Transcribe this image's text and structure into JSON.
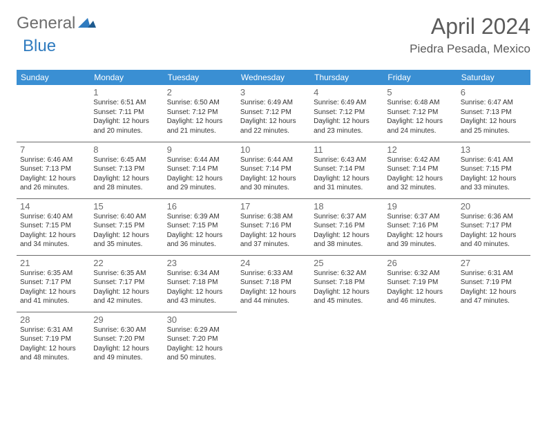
{
  "logo": {
    "text1": "General",
    "text2": "Blue"
  },
  "title": "April 2024",
  "location": "Piedra Pesada, Mexico",
  "header_bg": "#3a8fd3",
  "days_of_week": [
    "Sunday",
    "Monday",
    "Tuesday",
    "Wednesday",
    "Thursday",
    "Friday",
    "Saturday"
  ],
  "weeks": [
    [
      null,
      {
        "n": "1",
        "sr": "6:51 AM",
        "ss": "7:11 PM",
        "dh": "12",
        "dm": "20"
      },
      {
        "n": "2",
        "sr": "6:50 AM",
        "ss": "7:12 PM",
        "dh": "12",
        "dm": "21"
      },
      {
        "n": "3",
        "sr": "6:49 AM",
        "ss": "7:12 PM",
        "dh": "12",
        "dm": "22"
      },
      {
        "n": "4",
        "sr": "6:49 AM",
        "ss": "7:12 PM",
        "dh": "12",
        "dm": "23"
      },
      {
        "n": "5",
        "sr": "6:48 AM",
        "ss": "7:12 PM",
        "dh": "12",
        "dm": "24"
      },
      {
        "n": "6",
        "sr": "6:47 AM",
        "ss": "7:13 PM",
        "dh": "12",
        "dm": "25"
      }
    ],
    [
      {
        "n": "7",
        "sr": "6:46 AM",
        "ss": "7:13 PM",
        "dh": "12",
        "dm": "26"
      },
      {
        "n": "8",
        "sr": "6:45 AM",
        "ss": "7:13 PM",
        "dh": "12",
        "dm": "28"
      },
      {
        "n": "9",
        "sr": "6:44 AM",
        "ss": "7:14 PM",
        "dh": "12",
        "dm": "29"
      },
      {
        "n": "10",
        "sr": "6:44 AM",
        "ss": "7:14 PM",
        "dh": "12",
        "dm": "30"
      },
      {
        "n": "11",
        "sr": "6:43 AM",
        "ss": "7:14 PM",
        "dh": "12",
        "dm": "31"
      },
      {
        "n": "12",
        "sr": "6:42 AM",
        "ss": "7:14 PM",
        "dh": "12",
        "dm": "32"
      },
      {
        "n": "13",
        "sr": "6:41 AM",
        "ss": "7:15 PM",
        "dh": "12",
        "dm": "33"
      }
    ],
    [
      {
        "n": "14",
        "sr": "6:40 AM",
        "ss": "7:15 PM",
        "dh": "12",
        "dm": "34"
      },
      {
        "n": "15",
        "sr": "6:40 AM",
        "ss": "7:15 PM",
        "dh": "12",
        "dm": "35"
      },
      {
        "n": "16",
        "sr": "6:39 AM",
        "ss": "7:15 PM",
        "dh": "12",
        "dm": "36"
      },
      {
        "n": "17",
        "sr": "6:38 AM",
        "ss": "7:16 PM",
        "dh": "12",
        "dm": "37"
      },
      {
        "n": "18",
        "sr": "6:37 AM",
        "ss": "7:16 PM",
        "dh": "12",
        "dm": "38"
      },
      {
        "n": "19",
        "sr": "6:37 AM",
        "ss": "7:16 PM",
        "dh": "12",
        "dm": "39"
      },
      {
        "n": "20",
        "sr": "6:36 AM",
        "ss": "7:17 PM",
        "dh": "12",
        "dm": "40"
      }
    ],
    [
      {
        "n": "21",
        "sr": "6:35 AM",
        "ss": "7:17 PM",
        "dh": "12",
        "dm": "41"
      },
      {
        "n": "22",
        "sr": "6:35 AM",
        "ss": "7:17 PM",
        "dh": "12",
        "dm": "42"
      },
      {
        "n": "23",
        "sr": "6:34 AM",
        "ss": "7:18 PM",
        "dh": "12",
        "dm": "43"
      },
      {
        "n": "24",
        "sr": "6:33 AM",
        "ss": "7:18 PM",
        "dh": "12",
        "dm": "44"
      },
      {
        "n": "25",
        "sr": "6:32 AM",
        "ss": "7:18 PM",
        "dh": "12",
        "dm": "45"
      },
      {
        "n": "26",
        "sr": "6:32 AM",
        "ss": "7:19 PM",
        "dh": "12",
        "dm": "46"
      },
      {
        "n": "27",
        "sr": "6:31 AM",
        "ss": "7:19 PM",
        "dh": "12",
        "dm": "47"
      }
    ],
    [
      {
        "n": "28",
        "sr": "6:31 AM",
        "ss": "7:19 PM",
        "dh": "12",
        "dm": "48"
      },
      {
        "n": "29",
        "sr": "6:30 AM",
        "ss": "7:20 PM",
        "dh": "12",
        "dm": "49"
      },
      {
        "n": "30",
        "sr": "6:29 AM",
        "ss": "7:20 PM",
        "dh": "12",
        "dm": "50"
      },
      null,
      null,
      null,
      null
    ]
  ]
}
